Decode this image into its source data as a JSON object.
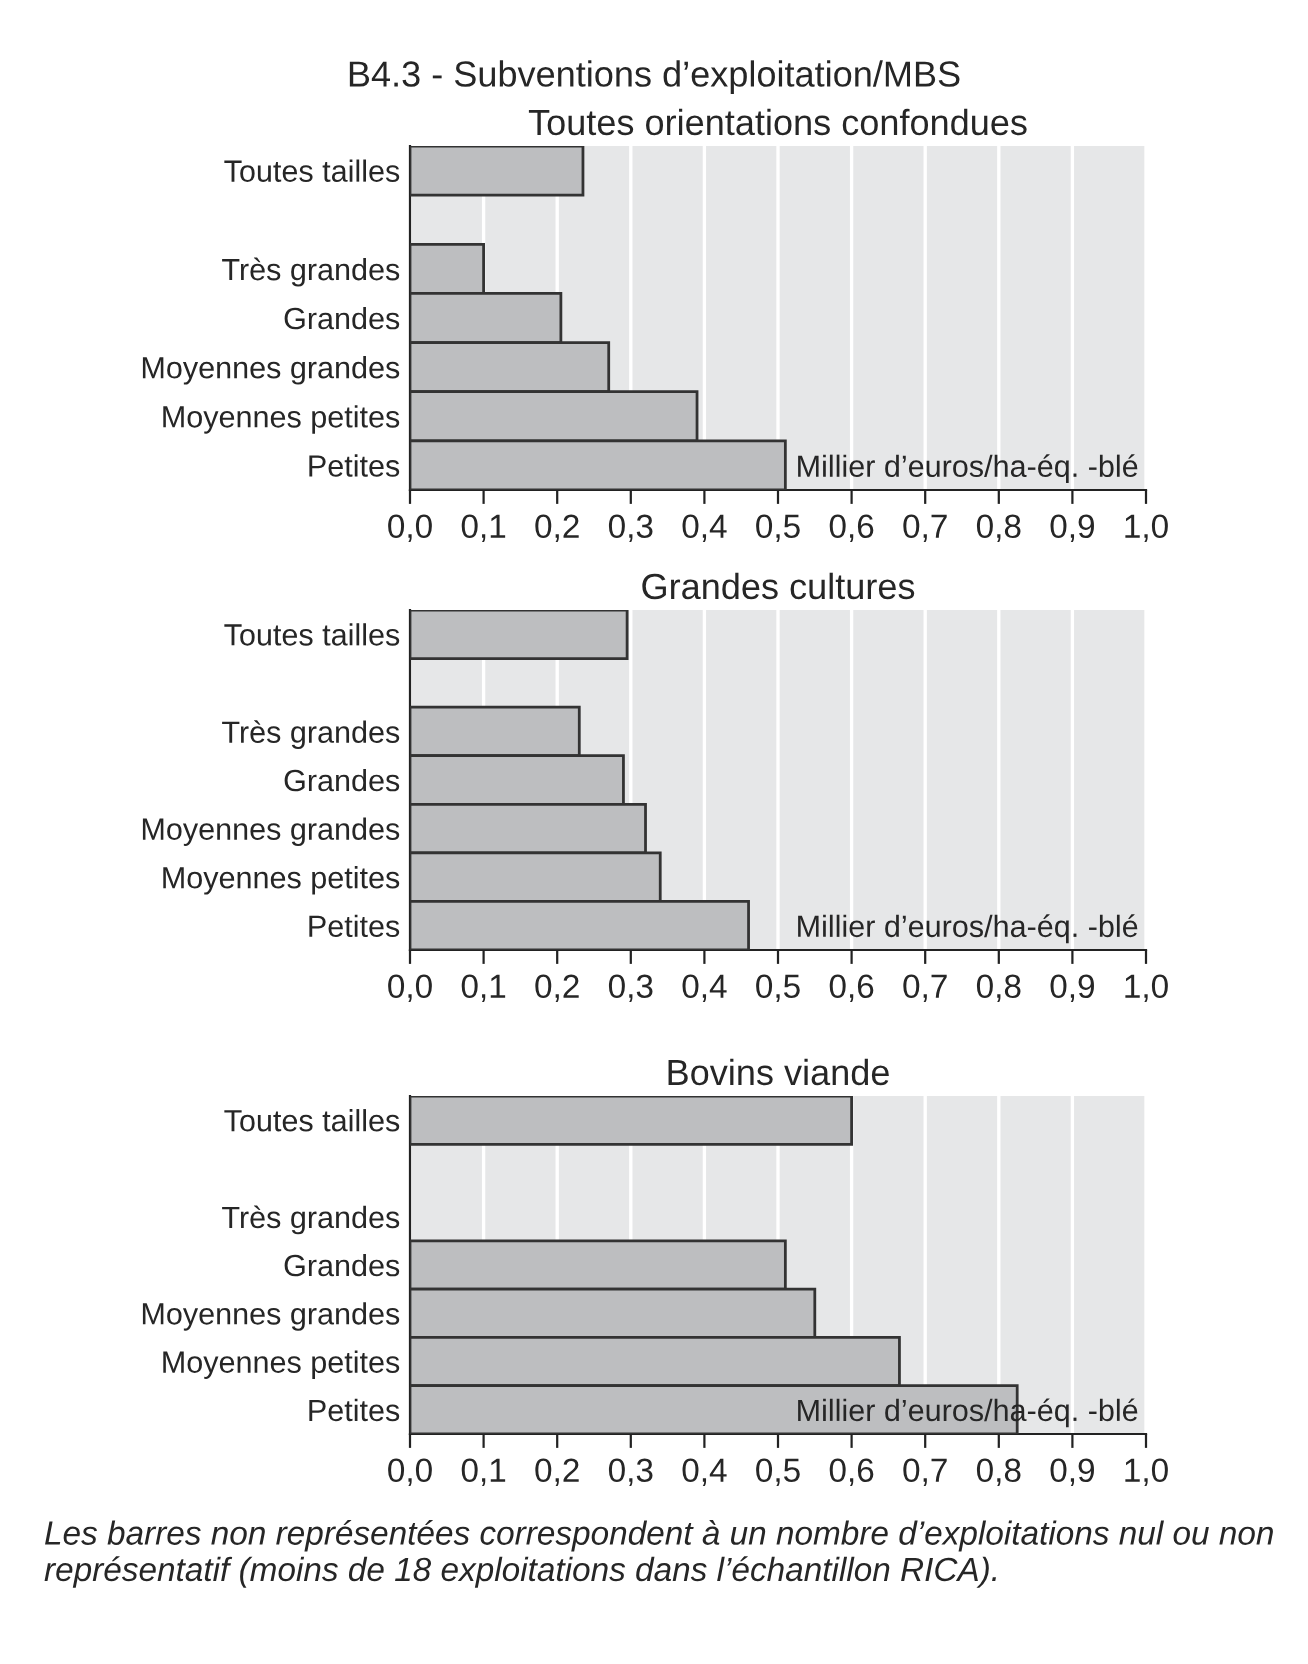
{
  "chart_data": [
    {
      "type": "bar",
      "orientation": "horizontal",
      "title": "B4.3 - Subventions d’exploitation/MBS",
      "subtitle": "Toutes orientations confondues",
      "categories": [
        "Toutes tailles",
        null,
        "Très grandes",
        "Grandes",
        "Moyennes grandes",
        "Moyennes petites",
        "Petites"
      ],
      "values": [
        0.235,
        null,
        0.1,
        0.205,
        0.27,
        0.39,
        0.51
      ],
      "color": "#bdbec0",
      "xlim": [
        0,
        1
      ],
      "xticks": [
        {
          "value": 0,
          "label": "0,0"
        },
        {
          "value": 0.1,
          "label": "0,1"
        },
        {
          "value": 0.2,
          "label": "0,2"
        },
        {
          "value": 0.3,
          "label": "0,3"
        },
        {
          "value": 0.4,
          "label": "0,4"
        },
        {
          "value": 0.5,
          "label": "0,5"
        },
        {
          "value": 0.6,
          "label": "0,6"
        },
        {
          "value": 0.7,
          "label": "0,7"
        },
        {
          "value": 0.8,
          "label": "0,8"
        },
        {
          "value": 0.9,
          "label": "0,9"
        },
        {
          "value": 1,
          "label": "1,0"
        }
      ],
      "grid": "x",
      "annotations": [
        "Millier d’euros/ha-éq. -blé"
      ]
    },
    {
      "type": "bar",
      "orientation": "horizontal",
      "title": "Grandes cultures",
      "categories": [
        "Toutes tailles",
        null,
        "Très grandes",
        "Grandes",
        "Moyennes grandes",
        "Moyennes petites",
        "Petites"
      ],
      "values": [
        0.295,
        null,
        0.23,
        0.29,
        0.32,
        0.34,
        0.46
      ],
      "color": "#bdbec0",
      "xlim": [
        0,
        1
      ],
      "xticks": [
        {
          "value": 0,
          "label": "0,0"
        },
        {
          "value": 0.1,
          "label": "0,1"
        },
        {
          "value": 0.2,
          "label": "0,2"
        },
        {
          "value": 0.3,
          "label": "0,3"
        },
        {
          "value": 0.4,
          "label": "0,4"
        },
        {
          "value": 0.5,
          "label": "0,5"
        },
        {
          "value": 0.6,
          "label": "0,6"
        },
        {
          "value": 0.7,
          "label": "0,7"
        },
        {
          "value": 0.8,
          "label": "0,8"
        },
        {
          "value": 0.9,
          "label": "0,9"
        },
        {
          "value": 1,
          "label": "1,0"
        }
      ],
      "grid": "x",
      "annotations": [
        "Millier d’euros/ha-éq. -blé"
      ]
    },
    {
      "type": "bar",
      "orientation": "horizontal",
      "title": "Bovins viande",
      "categories": [
        "Toutes tailles",
        null,
        "Très grandes",
        "Grandes",
        "Moyennes grandes",
        "Moyennes petites",
        "Petites"
      ],
      "values": [
        0.6,
        null,
        null,
        0.51,
        0.55,
        0.665,
        0.825
      ],
      "color": "#bdbec0",
      "xlim": [
        0,
        1
      ],
      "xticks": [
        {
          "value": 0,
          "label": "0,0"
        },
        {
          "value": 0.1,
          "label": "0,1"
        },
        {
          "value": 0.2,
          "label": "0,2"
        },
        {
          "value": 0.3,
          "label": "0,3"
        },
        {
          "value": 0.4,
          "label": "0,4"
        },
        {
          "value": 0.5,
          "label": "0,5"
        },
        {
          "value": 0.6,
          "label": "0,6"
        },
        {
          "value": 0.7,
          "label": "0,7"
        },
        {
          "value": 0.8,
          "label": "0,8"
        },
        {
          "value": 0.9,
          "label": "0,9"
        },
        {
          "value": 1,
          "label": "1,0"
        }
      ],
      "grid": "x",
      "annotations": [
        "Millier d’euros/ha-éq. -blé",
        "Les barres non représentées correspondent à un nombre d’exploitations nul ou non représentatif (moins de 18 exploitations dans l’échantillon RICA)."
      ]
    }
  ]
}
